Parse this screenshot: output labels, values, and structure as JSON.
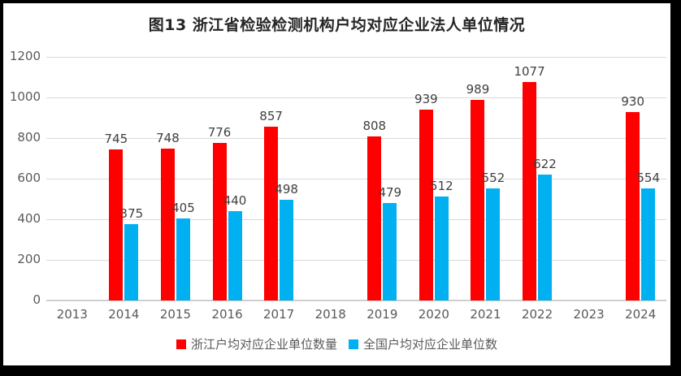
{
  "title": "图13 浙江省检验检测机构户均对应企业法人单位情况",
  "chart_data": {
    "type": "bar",
    "title": "图13 浙江省检验检测机构户均对应企业法人单位情况",
    "categories": [
      "2013",
      "2014",
      "2015",
      "2016",
      "2017",
      "2018",
      "2019",
      "2020",
      "2021",
      "2022",
      "2023",
      "2024"
    ],
    "series": [
      {
        "name": "浙江户均对应企业单位数量",
        "color": "#ff0000",
        "values": [
          null,
          745,
          748,
          776,
          857,
          null,
          808,
          939,
          989,
          1077,
          null,
          930
        ]
      },
      {
        "name": "全国户均对应企业单位数",
        "color": "#00b0f0",
        "values": [
          null,
          375,
          405,
          440,
          498,
          null,
          479,
          512,
          552,
          622,
          null,
          554
        ]
      }
    ],
    "ylim": [
      0,
      1200
    ],
    "yticks": [
      0,
      200,
      400,
      600,
      800,
      1000,
      1200
    ],
    "grid": true,
    "data_labels": true,
    "legend_position": "bottom"
  },
  "colors": {
    "bar_red": "#ff0000",
    "bar_blue": "#00b0f0",
    "gridline": "#d9d9d9",
    "axis_line": "#cfcfcf",
    "tick_label": "#595959",
    "data_label": "#404040",
    "title": "#262626",
    "frame": "#000000",
    "page_background": "#ffffff"
  }
}
